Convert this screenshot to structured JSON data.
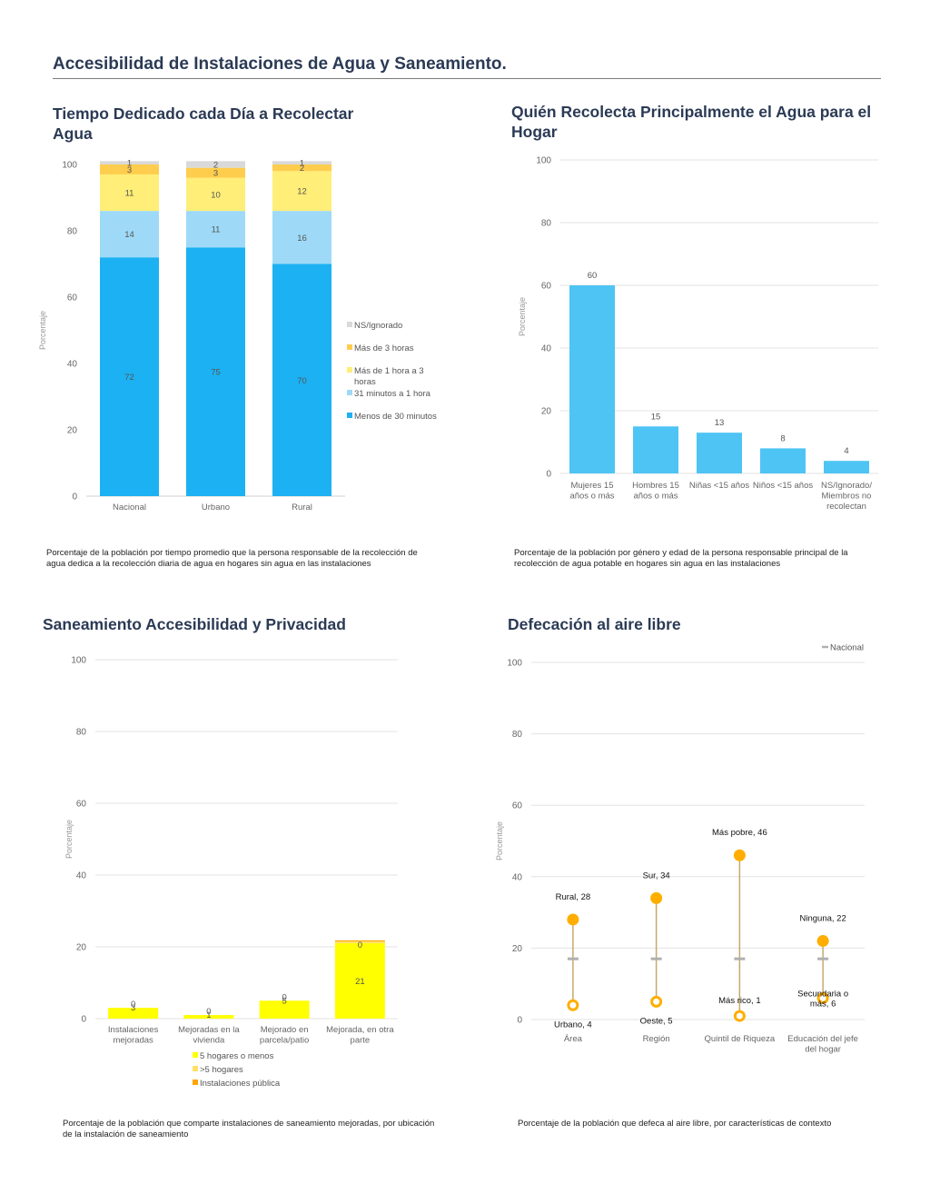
{
  "page_title": "Accesibilidad de Instalaciones de Agua y Saneamiento.",
  "colors": {
    "ns": "#d9d9d9",
    "mas3": "#ffcd4d",
    "h1a3": "#ffee77",
    "m31": "#9edaf7",
    "menos30": "#1cb1f2",
    "bar2": "#4ec4f5",
    "yellow": "#ffff00",
    "yellow_light": "#ffe066",
    "orange_pub": "#ffa500",
    "dot": "#ffae00",
    "nacional": "#b0b0b0"
  },
  "chart1": {
    "title": "Tiempo Dedicado cada Día a Recolectar Agua",
    "caption": "Porcentaje de la población por tiempo promedio que la persona responsable de la recolección de agua dedica a la recolección diaria de agua en hogares sin agua en las instalaciones",
    "ylabel": "Porcentaje",
    "chart_data": {
      "type": "bar",
      "stacked": true,
      "categories": [
        "Nacional",
        "Urbano",
        "Rural"
      ],
      "ylim": [
        0,
        100
      ],
      "yticks": [
        0,
        20,
        40,
        60,
        80,
        100
      ],
      "legend_position": "right",
      "series": [
        {
          "name": "Menos de 30 minutos",
          "color_key": "menos30",
          "values": [
            72,
            75,
            70
          ]
        },
        {
          "name": "31 minutos a 1 hora",
          "color_key": "m31",
          "values": [
            14,
            11,
            16
          ]
        },
        {
          "name": "Más de 1 hora a 3 horas",
          "color_key": "h1a3",
          "values": [
            11,
            10,
            12
          ]
        },
        {
          "name": "Más de 3 horas",
          "color_key": "mas3",
          "values": [
            3,
            3,
            2
          ]
        },
        {
          "name": "NS/Ignorado",
          "color_key": "ns",
          "values": [
            1,
            2,
            1
          ]
        }
      ]
    }
  },
  "chart2": {
    "title": "Quién Recolecta Principalmente el Agua para el Hogar",
    "caption": "Porcentaje de la población por género y edad de la persona responsable principal de la recolección de agua potable en hogares sin agua en las instalaciones",
    "ylabel": "Porcentaje",
    "chart_data": {
      "type": "bar",
      "categories": [
        [
          "Mujeres 15",
          "años o más"
        ],
        [
          "Hombres 15",
          "años o más"
        ],
        [
          "Niñas <15 años"
        ],
        [
          "Niños <15 años"
        ],
        [
          "NS/Ignorado/",
          "Miembros no",
          "recolectan"
        ]
      ],
      "values": [
        60,
        15,
        13,
        8,
        4
      ],
      "ylim": [
        0,
        100
      ],
      "yticks": [
        0,
        20,
        40,
        60,
        80,
        100
      ],
      "grid": true
    }
  },
  "chart3": {
    "title": "Saneamiento Accesibilidad y Privacidad",
    "caption": "Porcentaje de la población que comparte instalaciones de saneamiento mejoradas, por ubicación de la instalación de saneamiento",
    "ylabel": "Porcentaje",
    "chart_data": {
      "type": "bar",
      "stacked": true,
      "categories": [
        [
          "Instalaciones",
          "mejoradas"
        ],
        [
          "Mejoradas en la",
          "vivienda"
        ],
        [
          "Mejorado en",
          "parcela/patio"
        ],
        [
          "Mejorada, en otra",
          "parte"
        ]
      ],
      "ylim": [
        0,
        100
      ],
      "yticks": [
        0,
        20,
        40,
        60,
        80,
        100
      ],
      "grid": true,
      "legend_position": "bottom",
      "series": [
        {
          "name": "5 hogares o menos",
          "color_key": "yellow",
          "values": [
            3,
            1,
            5,
            21
          ],
          "labels": [
            "3",
            "1",
            "5",
            "21"
          ]
        },
        {
          "name": ">5 hogares",
          "color_key": "yellow_light",
          "values": [
            0,
            0,
            0,
            0.5
          ],
          "labels": [
            "0",
            "0",
            "0",
            "0"
          ]
        },
        {
          "name": "Instalaciones pública",
          "color_key": "orange_pub",
          "values": [
            0,
            0,
            0,
            0.3
          ],
          "labels": []
        }
      ]
    }
  },
  "chart4": {
    "title": "Defecación al aire libre",
    "caption": "Porcentaje de la población que defeca al aire libre, por características de contexto",
    "ylabel": "Porcentaje",
    "legend": "Nacional",
    "chart_data": {
      "type": "scatter",
      "subtype": "range",
      "categories": [
        [
          "Área"
        ],
        [
          "Región"
        ],
        [
          "Quintil de Riqueza"
        ],
        [
          "Educación del jefe",
          "del hogar"
        ]
      ],
      "ylim": [
        0,
        100
      ],
      "yticks": [
        0,
        20,
        40,
        60,
        80,
        100
      ],
      "grid": true,
      "nacional": 17,
      "high": [
        28,
        34,
        46,
        22
      ],
      "low": [
        4,
        5,
        1,
        6
      ],
      "high_labels": [
        [
          "Rural, 28"
        ],
        [
          "Sur, 34"
        ],
        [
          "Más pobre, 46"
        ],
        [
          "Ninguna, 22"
        ]
      ],
      "low_labels": [
        [
          "Urbano, 4"
        ],
        [
          "Oeste, 5"
        ],
        [
          "Más rico, 1"
        ],
        [
          "Secundaria o",
          "más, 6"
        ]
      ]
    }
  }
}
